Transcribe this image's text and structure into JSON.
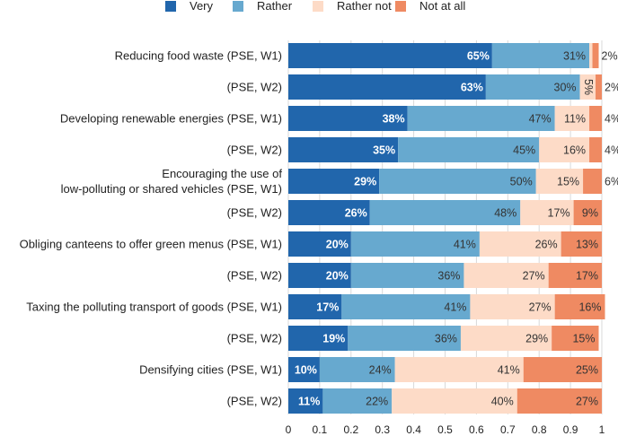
{
  "chart_data": {
    "type": "bar",
    "orientation": "horizontal",
    "stacked": true,
    "legend_position": "top",
    "grid": true,
    "xlim": [
      0,
      1
    ],
    "x_ticks": [
      "0",
      "0.1",
      "0.2",
      "0.3",
      "0.4",
      "0.5",
      "0.6",
      "0.7",
      "0.8",
      "0.9",
      "1"
    ],
    "categories": [
      [
        "Reducing food waste (PSE, W1)"
      ],
      [
        "(PSE, W2)"
      ],
      [
        "Developing renewable energies (PSE, W1)"
      ],
      [
        "(PSE, W2)"
      ],
      [
        "Encouraging the use of",
        "low-polluting or shared vehicles (PSE, W1)"
      ],
      [
        "(PSE, W2)"
      ],
      [
        "Obliging canteens to offer green menus (PSE, W1)"
      ],
      [
        "(PSE, W2)"
      ],
      [
        "Taxing the polluting transport of goods (PSE, W1)"
      ],
      [
        "(PSE, W2)"
      ],
      [
        "Densifying cities (PSE, W1)"
      ],
      [
        "(PSE, W2)"
      ]
    ],
    "series": [
      {
        "name": "Very",
        "color": "#2166ac",
        "values": [
          0.65,
          0.63,
          0.38,
          0.35,
          0.29,
          0.26,
          0.2,
          0.2,
          0.17,
          0.19,
          0.1,
          0.11
        ],
        "labels": [
          "65%",
          "63%",
          "38%",
          "35%",
          "29%",
          "26%",
          "20%",
          "20%",
          "17%",
          "19%",
          "10%",
          "11%"
        ]
      },
      {
        "name": "Rather",
        "color": "#67a9cf",
        "values": [
          0.31,
          0.3,
          0.47,
          0.45,
          0.5,
          0.48,
          0.41,
          0.36,
          0.41,
          0.36,
          0.24,
          0.22
        ],
        "labels": [
          "31%",
          "30%",
          "47%",
          "45%",
          "50%",
          "48%",
          "41%",
          "36%",
          "41%",
          "36%",
          "24%",
          "22%"
        ]
      },
      {
        "name": "Rather not",
        "color": "#fddbc7",
        "values": [
          0.01,
          0.05,
          0.11,
          0.16,
          0.15,
          0.17,
          0.26,
          0.27,
          0.27,
          0.29,
          0.41,
          0.4
        ],
        "labels": [
          "",
          "5%",
          "11%",
          "16%",
          "15%",
          "17%",
          "26%",
          "27%",
          "27%",
          "29%",
          "41%",
          "40%"
        ]
      },
      {
        "name": "Not at all",
        "color": "#ef8a62",
        "values": [
          0.02,
          0.02,
          0.04,
          0.04,
          0.06,
          0.09,
          0.13,
          0.17,
          0.16,
          0.15,
          0.25,
          0.27
        ],
        "labels": [
          "2%",
          "2%",
          "4%",
          "4%",
          "6%",
          "9%",
          "13%",
          "17%",
          "16%",
          "15%",
          "25%",
          "27%"
        ]
      }
    ]
  }
}
